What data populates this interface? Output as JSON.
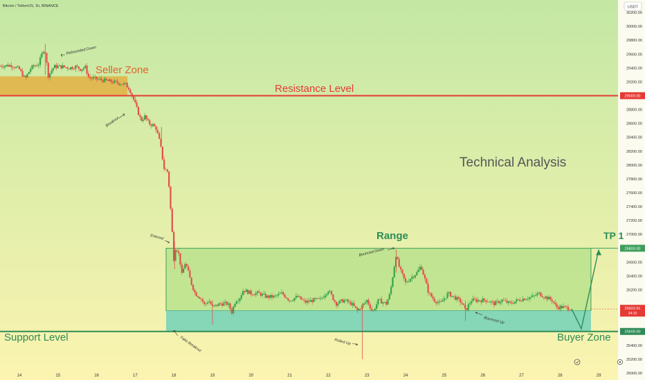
{
  "header": {
    "symbol_title": "Bitcoin / TetherUS, 1h, BINANCE",
    "currency": "USDT"
  },
  "colors": {
    "bg_top": "#c3e8a4",
    "bg_bottom": "#fbf4b0",
    "up": "#37a34a",
    "down": "#e0514a",
    "resistance": "#e53935",
    "support": "#2e8b57",
    "seller_zone": "#e3ad3f",
    "buyer_zone": "#7fd4b8",
    "range_box": "#b3e08a",
    "range_border": "#3d9e5c",
    "current_price_bg": "#e53935",
    "label_green": "#2e8b57"
  },
  "chart_data": {
    "type": "candlestick",
    "y_axis": {
      "ticks": [
        "30200.00",
        "30000.00",
        "29800.00",
        "29600.00",
        "29400.00",
        "29200.00",
        "28800.00",
        "28600.00",
        "28400.00",
        "28200.00",
        "28000.00",
        "27800.00",
        "27600.00",
        "27400.00",
        "27200.00",
        "27000.00",
        "26600.00",
        "26400.00",
        "26200.00",
        "25400.00",
        "25200.00",
        "25000.00"
      ],
      "range": [
        24900,
        30380
      ]
    },
    "x_axis": {
      "ticks": [
        "14",
        "15",
        "16",
        "17",
        "18",
        "19",
        "20",
        "21",
        "22",
        "23",
        "24",
        "25",
        "26",
        "27",
        "28",
        "29"
      ],
      "range": [
        13.5,
        29.5
      ]
    },
    "levels": {
      "resistance": {
        "price": 29000,
        "label": "Resistance Level",
        "axis_tag": "29000.00"
      },
      "support": {
        "price": 25600,
        "label": "Support Level",
        "axis_tag": "25600.00"
      },
      "range_top": {
        "price": 26800,
        "axis_tag": "26800.00"
      },
      "current": {
        "price": 25923.91,
        "axis_tag": "25923.91",
        "countdown": "34:10"
      }
    },
    "zones": [
      {
        "name": "Seller Zone",
        "label": "Seller Zone",
        "price_low": 29000,
        "price_high": 29280,
        "x_start": 13.5,
        "x_end": 16.8
      },
      {
        "name": "Range",
        "label": "Range",
        "price_low": 25900,
        "price_high": 26800,
        "x_start": 17.8,
        "x_end": 28.8
      },
      {
        "name": "Buyer Zone",
        "label": "Buyer Zone",
        "price_low": 25600,
        "price_high": 25900,
        "x_start": 17.8,
        "x_end": 28.8
      }
    ],
    "price_path": [
      [
        13.5,
        29430
      ],
      [
        13.8,
        29440
      ],
      [
        14.0,
        29380
      ],
      [
        14.15,
        29240
      ],
      [
        14.3,
        29400
      ],
      [
        14.5,
        29460
      ],
      [
        14.65,
        29700
      ],
      [
        14.75,
        29290
      ],
      [
        14.9,
        29420
      ],
      [
        15.1,
        29420
      ],
      [
        15.3,
        29400
      ],
      [
        15.45,
        29420
      ],
      [
        15.6,
        29380
      ],
      [
        15.7,
        29420
      ],
      [
        15.8,
        29260
      ],
      [
        16.0,
        29240
      ],
      [
        16.2,
        29220
      ],
      [
        16.4,
        29200
      ],
      [
        16.6,
        29180
      ],
      [
        16.75,
        29160
      ],
      [
        16.85,
        29100
      ],
      [
        16.95,
        28960
      ],
      [
        17.05,
        28800
      ],
      [
        17.15,
        28640
      ],
      [
        17.25,
        28700
      ],
      [
        17.35,
        28600
      ],
      [
        17.45,
        28580
      ],
      [
        17.55,
        28520
      ],
      [
        17.65,
        28300
      ],
      [
        17.75,
        27950
      ],
      [
        17.85,
        27900
      ],
      [
        17.9,
        27500
      ],
      [
        17.95,
        27100
      ],
      [
        18.0,
        26650
      ],
      [
        18.05,
        26830
      ],
      [
        18.15,
        26680
      ],
      [
        18.2,
        26400
      ],
      [
        18.3,
        26600
      ],
      [
        18.45,
        26300
      ],
      [
        18.55,
        26150
      ],
      [
        18.7,
        26080
      ],
      [
        18.8,
        25980
      ],
      [
        18.9,
        26050
      ],
      [
        19.0,
        25950
      ],
      [
        19.2,
        26000
      ],
      [
        19.4,
        26000
      ],
      [
        19.5,
        25880
      ],
      [
        19.6,
        26050
      ],
      [
        19.7,
        26080
      ],
      [
        19.8,
        26200
      ],
      [
        20.0,
        26150
      ],
      [
        20.2,
        26150
      ],
      [
        20.4,
        26100
      ],
      [
        20.6,
        26100
      ],
      [
        20.8,
        26150
      ],
      [
        21.0,
        26050
      ],
      [
        21.2,
        26100
      ],
      [
        21.4,
        26020
      ],
      [
        21.6,
        26050
      ],
      [
        21.8,
        26060
      ],
      [
        22.0,
        26200
      ],
      [
        22.2,
        26000
      ],
      [
        22.4,
        26050
      ],
      [
        22.6,
        26000
      ],
      [
        22.75,
        25900
      ],
      [
        22.9,
        25980
      ],
      [
        23.0,
        26050
      ],
      [
        23.15,
        25880
      ],
      [
        23.3,
        26050
      ],
      [
        23.5,
        26000
      ],
      [
        23.6,
        26150
      ],
      [
        23.75,
        26700
      ],
      [
        23.85,
        26500
      ],
      [
        24.0,
        26300
      ],
      [
        24.15,
        26380
      ],
      [
        24.3,
        26450
      ],
      [
        24.4,
        26550
      ],
      [
        24.5,
        26350
      ],
      [
        24.6,
        26150
      ],
      [
        24.75,
        26050
      ],
      [
        24.9,
        26000
      ],
      [
        25.1,
        26150
      ],
      [
        25.3,
        26080
      ],
      [
        25.45,
        26020
      ],
      [
        25.55,
        25900
      ],
      [
        25.7,
        26050
      ],
      [
        25.9,
        26050
      ],
      [
        26.1,
        26050
      ],
      [
        26.3,
        26000
      ],
      [
        26.5,
        26050
      ],
      [
        26.7,
        26000
      ],
      [
        26.9,
        26050
      ],
      [
        27.1,
        26080
      ],
      [
        27.3,
        26100
      ],
      [
        27.45,
        26150
      ],
      [
        27.6,
        26100
      ],
      [
        27.8,
        26050
      ],
      [
        27.9,
        25950
      ],
      [
        28.1,
        25950
      ],
      [
        28.3,
        25923.91
      ]
    ],
    "projection": [
      [
        28.3,
        25923.91
      ],
      [
        28.55,
        25640
      ],
      [
        29.0,
        26780
      ]
    ],
    "annotations": {
      "rebounded_down": "Rebounded Down",
      "breakout": "Breakout",
      "entered": "Entered",
      "fake_breakout": "Fake Breakout",
      "bounced_down": "Bounced Down",
      "rolled_up": "Rolled Up",
      "bounced_up": "Bounced Up",
      "tp1": "TP 1",
      "technical_analysis": "Technical Analysis"
    }
  }
}
